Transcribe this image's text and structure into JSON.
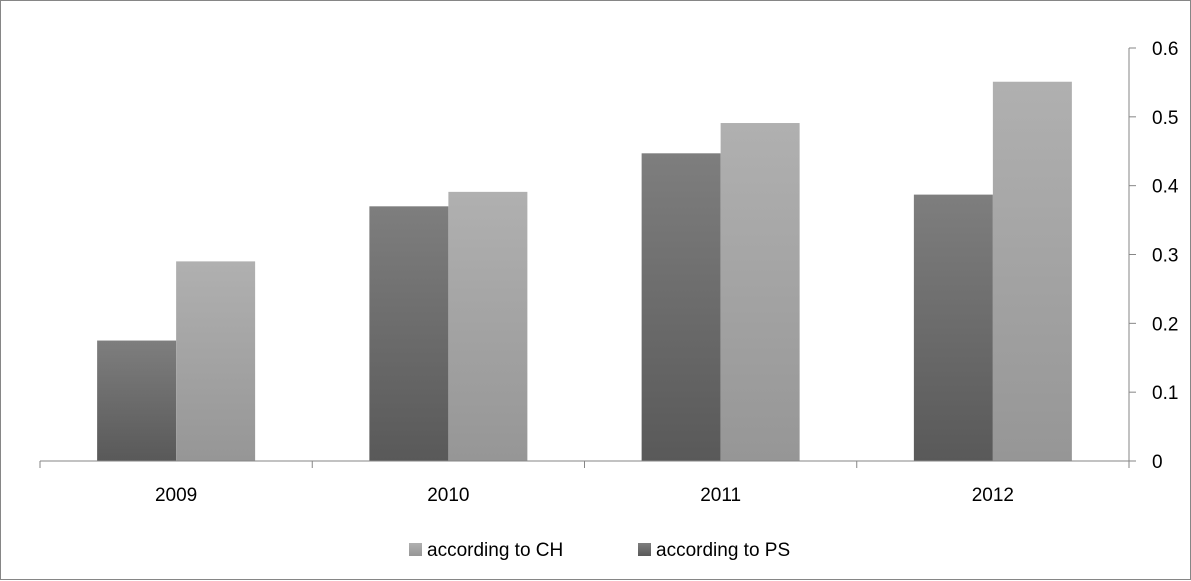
{
  "chart_data": {
    "type": "bar",
    "categories": [
      "2009",
      "2010",
      "2011",
      "2012"
    ],
    "series": [
      {
        "name": "according to PS",
        "values": [
          0.175,
          0.37,
          0.447,
          0.387
        ],
        "color": "#6f6f6f"
      },
      {
        "name": "according to CH",
        "values": [
          0.29,
          0.391,
          0.491,
          0.551
        ],
        "color": "#a4a4a4"
      }
    ],
    "yaxis": {
      "position": "right",
      "min": 0,
      "max": 0.6,
      "step": 0.1,
      "tick_labels": [
        "0",
        "0.1",
        "0.2",
        "0.3",
        "0.4",
        "0.5",
        "0.6"
      ]
    },
    "grid": false,
    "legend": {
      "placement": "bottom",
      "entries": [
        "according to CH",
        "according to PS"
      ]
    }
  }
}
